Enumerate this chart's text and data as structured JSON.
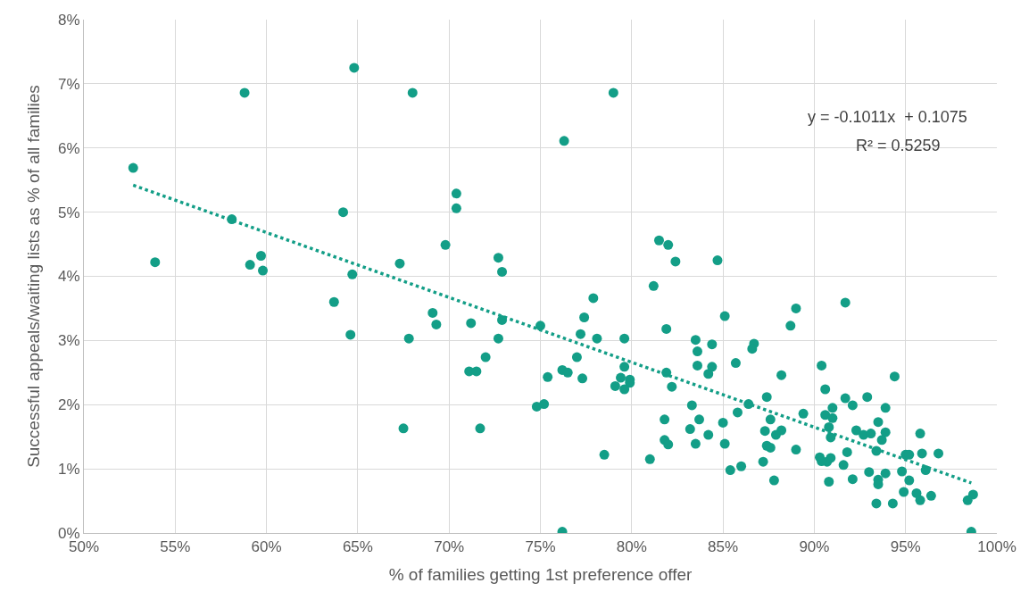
{
  "chart_data": {
    "type": "scatter",
    "xlabel": "% of families getting 1st preference offer",
    "ylabel": "Successful appeals/waiting lists as % of all families",
    "xlim": [
      50,
      100
    ],
    "ylim": [
      0,
      8
    ],
    "xticks": [
      {
        "value": 50,
        "label": "50%"
      },
      {
        "value": 55,
        "label": "55%"
      },
      {
        "value": 60,
        "label": "60%"
      },
      {
        "value": 65,
        "label": "65%"
      },
      {
        "value": 70,
        "label": "70%"
      },
      {
        "value": 75,
        "label": "75%"
      },
      {
        "value": 80,
        "label": "80%"
      },
      {
        "value": 85,
        "label": "85%"
      },
      {
        "value": 90,
        "label": "90%"
      },
      {
        "value": 95,
        "label": "95%"
      },
      {
        "value": 100,
        "label": "100%"
      }
    ],
    "yticks": [
      {
        "value": 0,
        "label": "0%"
      },
      {
        "value": 1,
        "label": "1%"
      },
      {
        "value": 2,
        "label": "2%"
      },
      {
        "value": 3,
        "label": "3%"
      },
      {
        "value": 4,
        "label": "4%"
      },
      {
        "value": 5,
        "label": "5%"
      },
      {
        "value": 6,
        "label": "6%"
      },
      {
        "value": 7,
        "label": "7%"
      },
      {
        "value": 8,
        "label": "8%"
      }
    ],
    "grid": true,
    "marker": "circle",
    "annotations": [
      "y = -0.1011x  + 0.1075",
      "R² = 0.5259"
    ],
    "series": [
      {
        "color": "#139e87",
        "x": [
          52.7,
          53.9,
          58.8,
          58.1,
          59.7,
          59.1,
          59.8,
          68.0,
          64.8,
          64.2,
          64.7,
          63.7,
          64.6,
          67.3,
          70.4,
          70.4,
          69.8,
          69.1,
          69.3,
          67.8,
          67.5,
          72.7,
          72.9,
          71.2,
          72.9,
          72.7,
          72.0,
          71.1,
          71.5,
          71.7,
          75.0,
          76.3,
          75.4,
          76.2,
          76.5,
          74.8,
          75.2,
          76.2,
          79.0,
          81.5,
          82.0,
          82.4,
          84.7,
          81.2,
          77.9,
          89.0,
          91.7,
          85.1,
          77.4,
          77.2,
          78.1,
          79.6,
          77.0,
          77.3,
          79.6,
          79.4,
          79.9,
          79.9,
          79.1,
          79.6,
          78.5,
          81.0,
          81.9,
          81.9,
          82.2,
          81.8,
          81.8,
          82.0,
          83.5,
          84.4,
          83.6,
          83.6,
          84.4,
          84.2,
          83.3,
          83.7,
          85.0,
          83.2,
          84.2,
          83.5,
          85.1,
          85.7,
          86.4,
          85.8,
          85.4,
          86.0,
          86.7,
          86.6,
          88.2,
          87.4,
          87.6,
          89.4,
          87.3,
          88.2,
          87.9,
          87.4,
          87.6,
          89.0,
          87.2,
          87.8,
          88.7,
          90.4,
          90.6,
          91.7,
          92.9,
          94.4,
          92.1,
          91.0,
          93.9,
          90.6,
          91.0,
          90.8,
          90.9,
          93.5,
          92.3,
          92.7,
          93.1,
          93.9,
          93.7,
          93.4,
          91.8,
          95.8,
          95.9,
          96.8,
          95.0,
          95.2,
          96.1,
          91.6,
          93.0,
          93.9,
          94.8,
          95.2,
          92.1,
          93.5,
          93.5,
          94.9,
          95.6,
          95.8,
          96.4,
          93.4,
          94.3,
          98.7,
          98.4,
          98.6,
          90.3,
          90.7,
          90.9,
          90.4,
          90.8
        ],
        "values": [
          5.69,
          4.22,
          6.86,
          4.89,
          4.32,
          4.18,
          4.09,
          6.86,
          7.25,
          5.0,
          4.03,
          3.6,
          3.09,
          4.2,
          5.29,
          5.06,
          4.49,
          3.43,
          3.25,
          3.03,
          1.63,
          4.29,
          4.07,
          3.27,
          3.32,
          3.03,
          2.74,
          2.52,
          2.52,
          1.63,
          3.23,
          6.11,
          2.43,
          2.54,
          2.5,
          1.97,
          2.01,
          0.02,
          6.86,
          4.56,
          4.49,
          4.23,
          4.25,
          3.85,
          3.66,
          3.5,
          3.59,
          3.38,
          3.36,
          3.1,
          3.03,
          3.03,
          2.74,
          2.41,
          2.59,
          2.42,
          2.39,
          2.34,
          2.29,
          2.24,
          1.22,
          1.15,
          3.18,
          2.5,
          2.28,
          1.77,
          1.45,
          1.38,
          3.01,
          2.94,
          2.83,
          2.61,
          2.59,
          2.48,
          1.99,
          1.77,
          1.72,
          1.62,
          1.53,
          1.39,
          1.39,
          2.65,
          2.01,
          1.88,
          0.98,
          1.04,
          2.95,
          2.87,
          2.46,
          2.12,
          1.77,
          1.86,
          1.59,
          1.6,
          1.53,
          1.36,
          1.33,
          1.3,
          1.11,
          0.82,
          3.23,
          2.61,
          2.24,
          2.1,
          2.12,
          2.44,
          1.99,
          1.95,
          1.95,
          1.84,
          1.79,
          1.65,
          1.49,
          1.73,
          1.6,
          1.53,
          1.55,
          1.57,
          1.45,
          1.28,
          1.26,
          1.55,
          1.24,
          1.24,
          1.22,
          1.22,
          0.98,
          1.06,
          0.95,
          0.93,
          0.96,
          0.82,
          0.84,
          0.83,
          0.76,
          0.64,
          0.62,
          0.51,
          0.58,
          0.46,
          0.46,
          0.6,
          0.51,
          0.02,
          1.18,
          1.11,
          1.17,
          1.12,
          0.8
        ]
      },
      {
        "type": "line",
        "color": "#139e87",
        "line_style": "dotted",
        "marker": "none",
        "x": [
          52.7,
          98.6
        ],
        "values": [
          5.42,
          0.78
        ]
      }
    ]
  }
}
